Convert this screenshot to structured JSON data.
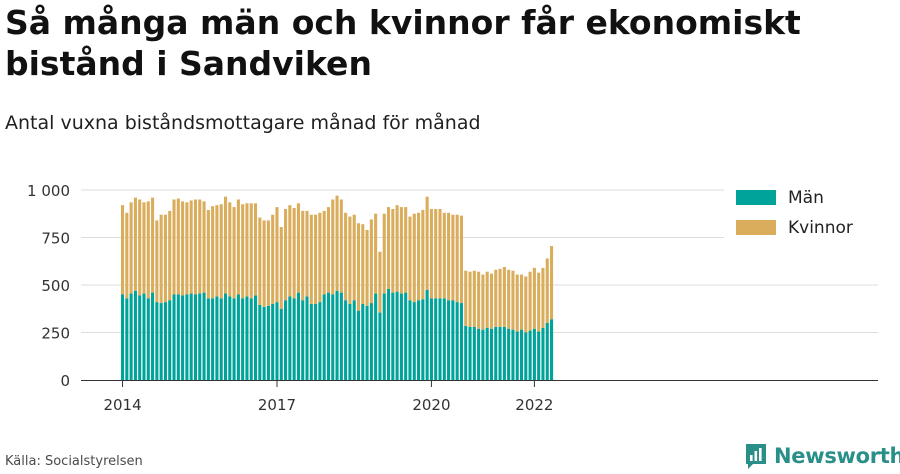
{
  "title": "Så många män och kvinnor får ekonomiskt bistånd i Sandviken",
  "subtitle": "Antal vuxna biståndsmottagare månad för månad",
  "source": "Källa: Socialstyrelsen",
  "brand": {
    "name": "Newsworthy",
    "icon": "newsworthy-logo-icon"
  },
  "chart_data": {
    "type": "bar",
    "stacked": true,
    "x_start": "2014-01",
    "frequency": "monthly",
    "x_ticks": [
      "2014",
      "2017",
      "2020",
      "2022"
    ],
    "y_ticks": [
      "0",
      "250",
      "500",
      "750",
      "1 000"
    ],
    "ylim": [
      0,
      1000
    ],
    "grid": true,
    "legend_position": "top-right",
    "colors": {
      "Män": "#00a39a",
      "Kvinnor": "#d9ad5b",
      "grid": "#dddddd",
      "axis": "#333333"
    },
    "series": [
      {
        "name": "Män",
        "values": [
          450,
          430,
          455,
          470,
          445,
          455,
          430,
          460,
          410,
          405,
          410,
          420,
          450,
          450,
          445,
          450,
          455,
          450,
          455,
          460,
          430,
          430,
          440,
          430,
          455,
          440,
          430,
          450,
          430,
          440,
          430,
          445,
          395,
          385,
          390,
          400,
          410,
          375,
          420,
          440,
          430,
          460,
          420,
          440,
          400,
          400,
          410,
          450,
          460,
          450,
          470,
          460,
          420,
          400,
          420,
          365,
          400,
          390,
          405,
          455,
          355,
          455,
          480,
          460,
          465,
          455,
          460,
          420,
          410,
          420,
          425,
          475,
          430,
          430,
          430,
          430,
          420,
          420,
          410,
          405,
          285,
          280,
          280,
          270,
          265,
          275,
          270,
          280,
          280,
          280,
          270,
          265,
          255,
          265,
          250,
          260,
          270,
          255,
          275,
          300,
          320
        ]
      },
      {
        "name": "Kvinnor",
        "values": [
          470,
          450,
          480,
          490,
          505,
          480,
          510,
          500,
          430,
          465,
          460,
          470,
          500,
          505,
          495,
          485,
          490,
          500,
          495,
          480,
          465,
          485,
          480,
          495,
          510,
          495,
          480,
          500,
          495,
          490,
          500,
          485,
          460,
          455,
          450,
          470,
          500,
          430,
          480,
          480,
          475,
          470,
          470,
          450,
          470,
          470,
          470,
          440,
          450,
          500,
          500,
          490,
          460,
          460,
          450,
          460,
          420,
          400,
          440,
          420,
          320,
          420,
          430,
          440,
          455,
          455,
          450,
          440,
          465,
          460,
          470,
          490,
          470,
          470,
          470,
          450,
          460,
          450,
          460,
          460,
          290,
          290,
          295,
          300,
          290,
          295,
          290,
          300,
          305,
          315,
          310,
          310,
          300,
          290,
          295,
          310,
          320,
          310,
          315,
          340,
          385
        ]
      }
    ]
  }
}
